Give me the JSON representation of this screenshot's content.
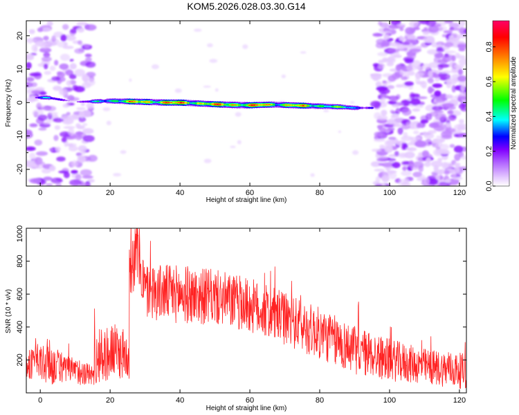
{
  "chart_data": [
    {
      "type": "heatmap",
      "title": "KOM5.2026.028.03.30.G14",
      "xlabel": "Height of straight line (km)",
      "ylabel": "Frequency (Hz)",
      "xlim": [
        -4,
        122
      ],
      "ylim": [
        -25,
        24.5
      ],
      "xticks": [
        0,
        20,
        40,
        60,
        80,
        100,
        120
      ],
      "yticks": [
        -20,
        -10,
        0,
        10,
        20
      ],
      "colorbar": {
        "label": "Normalized spectral amplitude",
        "range": [
          0,
          0.95
        ],
        "ticks": [
          "0.0",
          "0.2",
          "0.4",
          "0.6",
          "0.8"
        ],
        "colors": [
          "#ffffff",
          "#e6ccff",
          "#b266ff",
          "#8000ff",
          "#0000ff",
          "#00ffff",
          "#00ff00",
          "#ffff00",
          "#ff8000",
          "#ff0000",
          "#ff0066"
        ]
      },
      "ridge": [
        {
          "x": -1,
          "freq": 1.5,
          "amp": 0.35
        },
        {
          "x": 2,
          "freq": 1.5,
          "amp": 0.4
        },
        {
          "x": 10,
          "freq": 0.2,
          "amp": 0.15
        },
        {
          "x": 20,
          "freq": 0.5,
          "amp": 0.6
        },
        {
          "x": 30,
          "freq": 0.2,
          "amp": 0.85
        },
        {
          "x": 36,
          "freq": 0.0,
          "amp": 0.85
        },
        {
          "x": 40,
          "freq": 0.0,
          "amp": 0.85
        },
        {
          "x": 50,
          "freq": -0.5,
          "amp": 0.8
        },
        {
          "x": 55,
          "freq": -0.7,
          "amp": 0.9
        },
        {
          "x": 60,
          "freq": -0.8,
          "amp": 0.85
        },
        {
          "x": 66,
          "freq": -0.6,
          "amp": 0.8
        },
        {
          "x": 78,
          "freq": -1.0,
          "amp": 0.75
        },
        {
          "x": 86,
          "freq": -1.3,
          "amp": 0.55
        },
        {
          "x": 90,
          "freq": -1.6,
          "amp": 0.45
        },
        {
          "x": 95,
          "freq": -1.6,
          "amp": 0.3
        }
      ],
      "noise_regions": [
        {
          "x_from": -4,
          "x_to": 15,
          "density": "moderate"
        },
        {
          "x_from": 96,
          "x_to": 122,
          "density": "high"
        }
      ]
    },
    {
      "type": "line",
      "xlabel": "Height of straight line (km)",
      "ylabel": "SNR (10 * v/v)",
      "xlim": [
        -4,
        122
      ],
      "ylim": [
        0,
        1000
      ],
      "xticks": [
        0,
        20,
        40,
        60,
        80,
        100,
        120
      ],
      "yticks": [
        200,
        400,
        600,
        800,
        1000
      ],
      "color": "#ff2222",
      "envelope": [
        {
          "x": -4,
          "mean": 170,
          "spread": 80
        },
        {
          "x": 2,
          "mean": 190,
          "spread": 150
        },
        {
          "x": 6,
          "mean": 150,
          "spread": 90
        },
        {
          "x": 10,
          "mean": 130,
          "spread": 80
        },
        {
          "x": 15,
          "mean": 110,
          "spread": 70
        },
        {
          "x": 16,
          "mean": 210,
          "spread": 160
        },
        {
          "x": 21,
          "mean": 250,
          "spread": 170
        },
        {
          "x": 25,
          "mean": 230,
          "spread": 150
        },
        {
          "x": 26,
          "mean": 780,
          "spread": 190
        },
        {
          "x": 28,
          "mean": 850,
          "spread": 200
        },
        {
          "x": 30,
          "mean": 620,
          "spread": 170
        },
        {
          "x": 40,
          "mean": 600,
          "spread": 180
        },
        {
          "x": 50,
          "mean": 580,
          "spread": 170
        },
        {
          "x": 60,
          "mean": 530,
          "spread": 170
        },
        {
          "x": 70,
          "mean": 450,
          "spread": 160
        },
        {
          "x": 80,
          "mean": 360,
          "spread": 160
        },
        {
          "x": 90,
          "mean": 260,
          "spread": 150
        },
        {
          "x": 100,
          "mean": 200,
          "spread": 130
        },
        {
          "x": 110,
          "mean": 160,
          "spread": 110
        },
        {
          "x": 122,
          "mean": 130,
          "spread": 110
        }
      ]
    }
  ]
}
